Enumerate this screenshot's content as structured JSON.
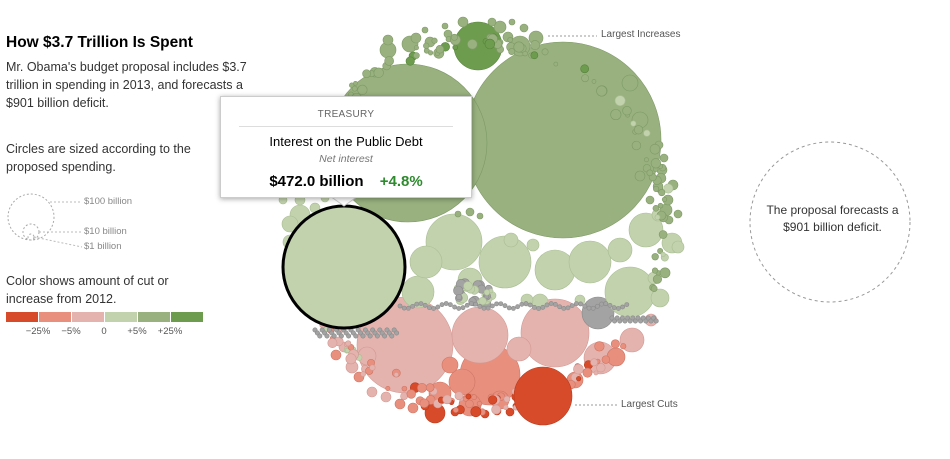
{
  "header": {
    "title": "How $3.7 Trillion Is Spent",
    "description": "Mr. Obama's budget proposal includes $3.7 trillion in spending in 2013, and forecasts a $901 billion deficit."
  },
  "size_legend": {
    "text": "Circles are sized according to the proposed spending.",
    "items": [
      {
        "label": "$100 billion",
        "value": 100
      },
      {
        "label": "$10 billion",
        "value": 10
      },
      {
        "label": "$1 billion",
        "value": 1
      }
    ]
  },
  "color_legend": {
    "text": "Color shows amount of cut or increase from 2012.",
    "colors": [
      "#d84b2a",
      "#e88f7e",
      "#e5b3ae",
      "#c2d2ad",
      "#98b17e",
      "#6e9c4e"
    ],
    "ticks": [
      "−25%",
      "−5%",
      "0",
      "+5%",
      "+25%"
    ]
  },
  "tooltip": {
    "category": "TREASURY",
    "name": "Interest on the Public Debt",
    "subtitle": "Net interest",
    "amount": "$472.0 billion",
    "change": "+4.8%"
  },
  "annotations": {
    "largest_increases": "Largest Increases",
    "largest_cuts": "Largest Cuts",
    "deficit": "The proposal forecasts a $901 billion deficit."
  },
  "chart_data": {
    "type": "bubble",
    "total_spending_trillion": 3.7,
    "deficit_billion": 901,
    "color_scale_pct": [
      -25,
      -5,
      0,
      5,
      25
    ],
    "highlighted": {
      "name": "Interest on the Public Debt",
      "category": "Treasury",
      "subtitle": "Net interest",
      "value_billion": 472.0,
      "change_pct": 4.8
    }
  }
}
